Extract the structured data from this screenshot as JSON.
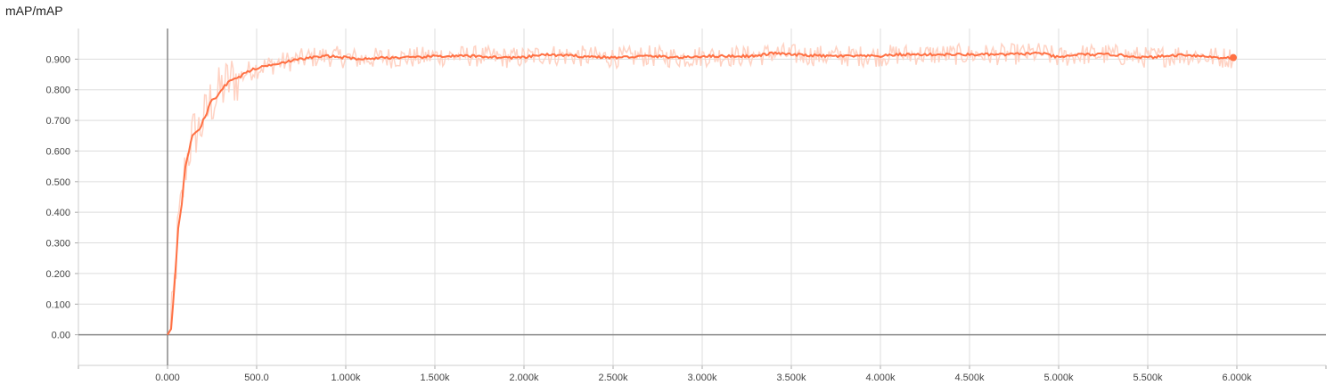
{
  "chart_data": {
    "type": "line",
    "title": "mAP/mAP",
    "xlabel": "",
    "ylabel": "",
    "xlim": [
      -500,
      6500
    ],
    "ylim": [
      -0.1,
      1.0
    ],
    "x_ticks": [
      0,
      500,
      1000,
      1500,
      2000,
      2500,
      3000,
      3500,
      4000,
      4500,
      5000,
      5500,
      6000
    ],
    "x_tick_labels": [
      "0.000",
      "500.0",
      "1.000k",
      "1.500k",
      "2.000k",
      "2.500k",
      "3.000k",
      "3.500k",
      "4.000k",
      "4.500k",
      "5.000k",
      "5.500k",
      "6.000k"
    ],
    "y_ticks": [
      0,
      0.1,
      0.2,
      0.3,
      0.4,
      0.5,
      0.6,
      0.7,
      0.8,
      0.9
    ],
    "y_tick_labels": [
      "0.00",
      "0.100",
      "0.200",
      "0.300",
      "0.400",
      "0.500",
      "0.600",
      "0.700",
      "0.800",
      "0.900"
    ],
    "grid": true,
    "colors": {
      "smoothed": "#ff7043",
      "raw": "#ffcdbd",
      "axis": "#888888",
      "grid": "#dddddd"
    },
    "series": [
      {
        "values_smoothed_x": [
          0,
          20,
          40,
          60,
          80,
          100,
          120,
          140,
          160,
          180,
          200,
          220,
          240,
          260,
          280,
          300,
          350,
          400,
          450,
          500,
          600,
          700,
          800,
          900,
          1000,
          1100,
          1200,
          1300,
          1400,
          1500,
          1700,
          1900,
          2000,
          2100,
          2300,
          2500,
          2700,
          2900,
          3000,
          3100,
          3300,
          3400,
          3500,
          3700,
          3900,
          4000,
          4100,
          4300,
          4500,
          4700,
          4900,
          5000,
          5100,
          5300,
          5500,
          5700,
          5900,
          5980
        ],
        "values_smoothed_y": [
          0.0,
          0.02,
          0.17,
          0.35,
          0.43,
          0.55,
          0.6,
          0.65,
          0.665,
          0.67,
          0.7,
          0.72,
          0.76,
          0.77,
          0.78,
          0.8,
          0.83,
          0.84,
          0.86,
          0.87,
          0.885,
          0.895,
          0.905,
          0.91,
          0.905,
          0.9,
          0.905,
          0.905,
          0.905,
          0.91,
          0.91,
          0.905,
          0.905,
          0.915,
          0.91,
          0.905,
          0.91,
          0.905,
          0.91,
          0.91,
          0.91,
          0.92,
          0.915,
          0.91,
          0.91,
          0.91,
          0.915,
          0.915,
          0.915,
          0.915,
          0.92,
          0.905,
          0.915,
          0.915,
          0.905,
          0.915,
          0.905,
          0.905
        ]
      }
    ]
  }
}
